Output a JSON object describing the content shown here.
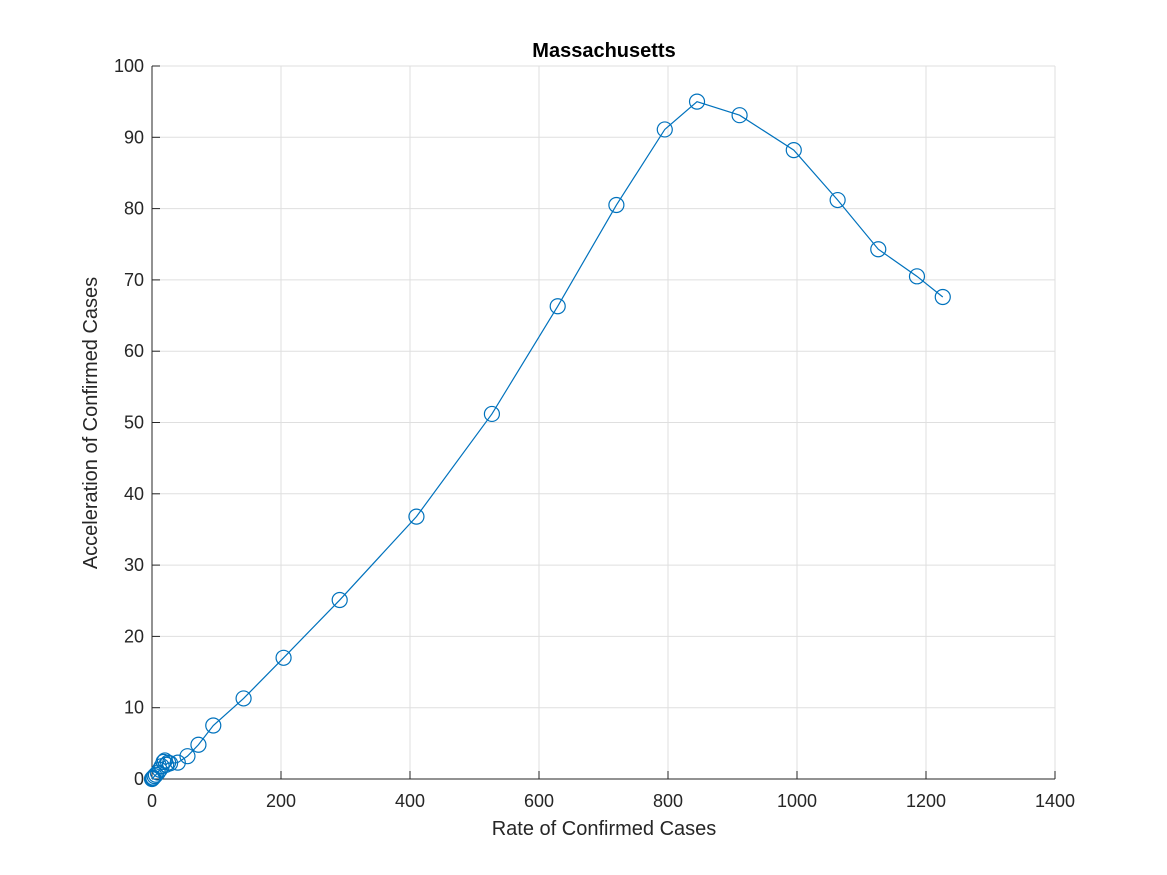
{
  "chart_data": {
    "type": "line",
    "title": "Massachusetts",
    "xlabel": "Rate of Confirmed Cases",
    "ylabel": "Acceleration of Confirmed Cases",
    "xlim": [
      0,
      1400
    ],
    "ylim": [
      0,
      100
    ],
    "xticks": [
      0,
      200,
      400,
      600,
      800,
      1000,
      1200,
      1400
    ],
    "yticks": [
      0,
      10,
      20,
      30,
      40,
      50,
      60,
      70,
      80,
      90,
      100
    ],
    "grid": true,
    "marker": "circle",
    "colors": {
      "series": "#0072bd",
      "grid": "#dfdfdf",
      "axis": "#262626"
    },
    "series": [
      {
        "x": [
          0,
          1,
          2,
          4,
          6,
          9,
          12,
          15,
          18,
          20,
          22,
          25,
          28,
          40,
          55,
          72,
          95,
          142,
          204,
          291,
          410,
          527,
          629,
          720,
          795,
          845,
          911,
          995,
          1063,
          1126,
          1186,
          1226
        ],
        "y": [
          0,
          0.1,
          0.2,
          0.4,
          0.6,
          0.9,
          1.3,
          1.8,
          2.4,
          2.6,
          2.0,
          2.3,
          2.2,
          2.3,
          3.2,
          4.8,
          7.5,
          11.3,
          17.0,
          25.1,
          36.8,
          51.2,
          66.3,
          80.5,
          91.1,
          95.0,
          93.1,
          88.2,
          81.2,
          74.3,
          70.5,
          67.6
        ]
      }
    ]
  }
}
